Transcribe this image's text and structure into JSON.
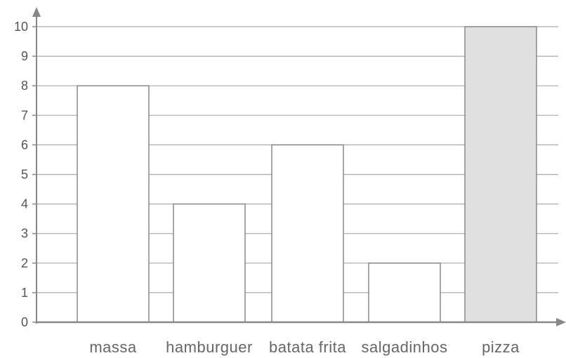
{
  "chart_data": {
    "type": "bar",
    "categories": [
      "massa",
      "hamburguer",
      "batata frita",
      "salgadinhos",
      "pizza"
    ],
    "values": [
      8,
      4,
      6,
      2,
      10
    ],
    "yticks": [
      "0",
      "1",
      "2",
      "3",
      "4",
      "5",
      "6",
      "7",
      "8",
      "9",
      "10"
    ],
    "ylim": [
      0,
      10
    ],
    "grid": true,
    "colors": {
      "bar_fill": [
        "#ffffff",
        "#ffffff",
        "#ffffff",
        "#ffffff",
        "#e0e0e0"
      ],
      "bar_stroke": "#888888",
      "grid": "#aaaaaa",
      "axis": "#888888",
      "tick_mark": "#888888"
    }
  }
}
